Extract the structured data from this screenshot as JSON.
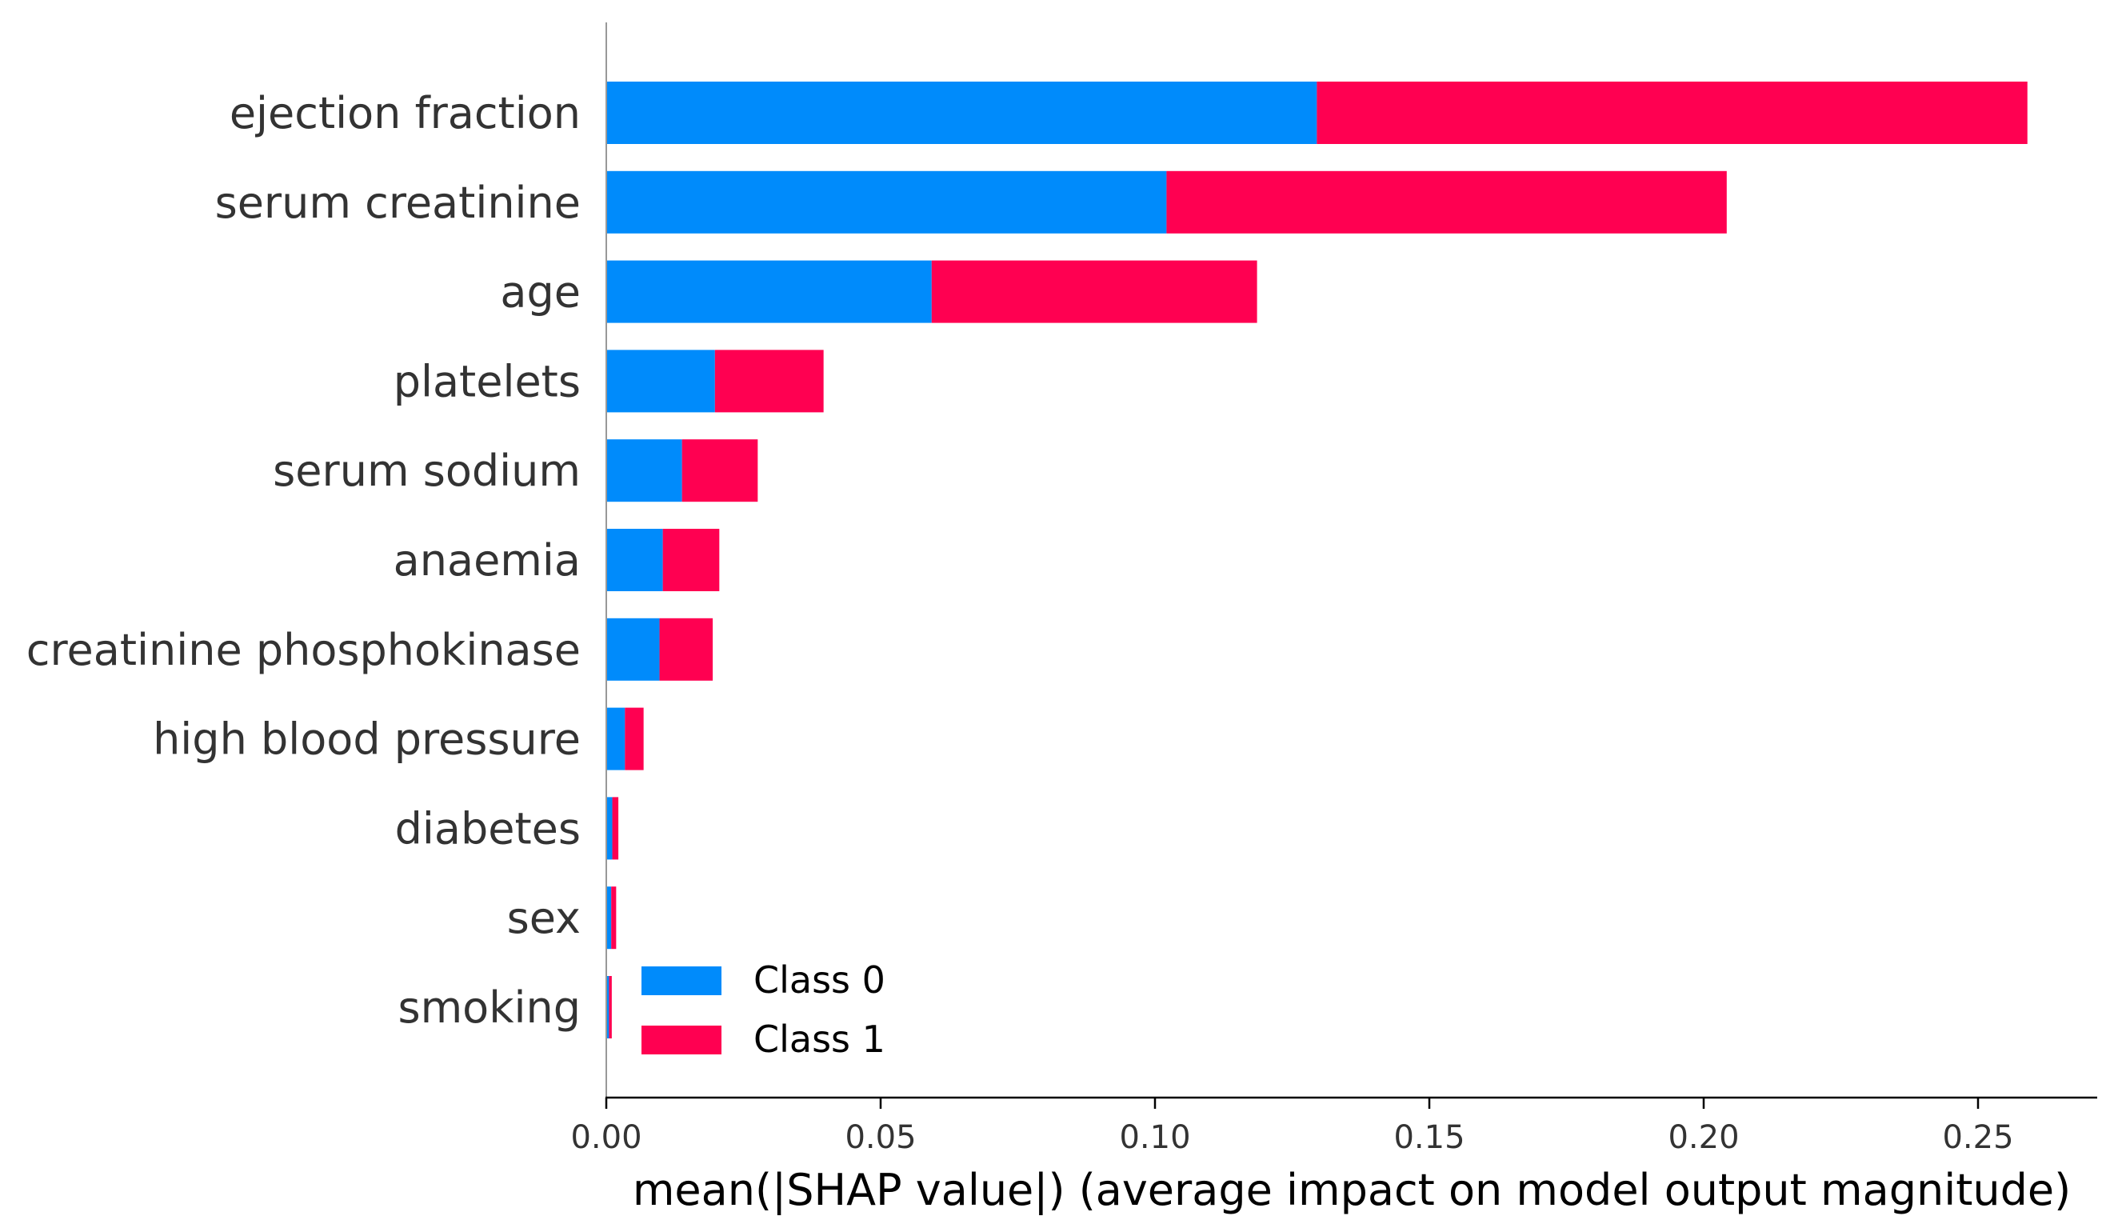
{
  "chart_data": {
    "type": "bar",
    "orientation": "horizontal",
    "stacked": true,
    "title": "",
    "xlabel": "mean(|SHAP value|) (average impact on model output magnitude)",
    "ylabel": "",
    "xlim": [
      0,
      0.27
    ],
    "xticks": [
      "0.00",
      "0.05",
      "0.10",
      "0.15",
      "0.20",
      "0.25"
    ],
    "xtick_values": [
      0,
      0.05,
      0.1,
      0.15,
      0.2,
      0.25
    ],
    "grid": false,
    "legend_position": "lower-left",
    "categories": [
      "ejection fraction",
      "serum creatinine",
      "age",
      "platelets",
      "serum sodium",
      "anaemia",
      "creatinine phosphokinase",
      "high blood pressure",
      "diabetes",
      "sex",
      "smoking"
    ],
    "series": [
      {
        "name": "Class 0",
        "color": "#008bfb",
        "values": [
          0.1295,
          0.1021,
          0.0593,
          0.0198,
          0.0138,
          0.0103,
          0.0097,
          0.0034,
          0.0011,
          0.0009,
          0.0005
        ]
      },
      {
        "name": "Class 1",
        "color": "#ff0051",
        "values": [
          0.1295,
          0.1021,
          0.0593,
          0.0198,
          0.0138,
          0.0103,
          0.0097,
          0.0034,
          0.0011,
          0.0009,
          0.0005
        ]
      }
    ]
  }
}
